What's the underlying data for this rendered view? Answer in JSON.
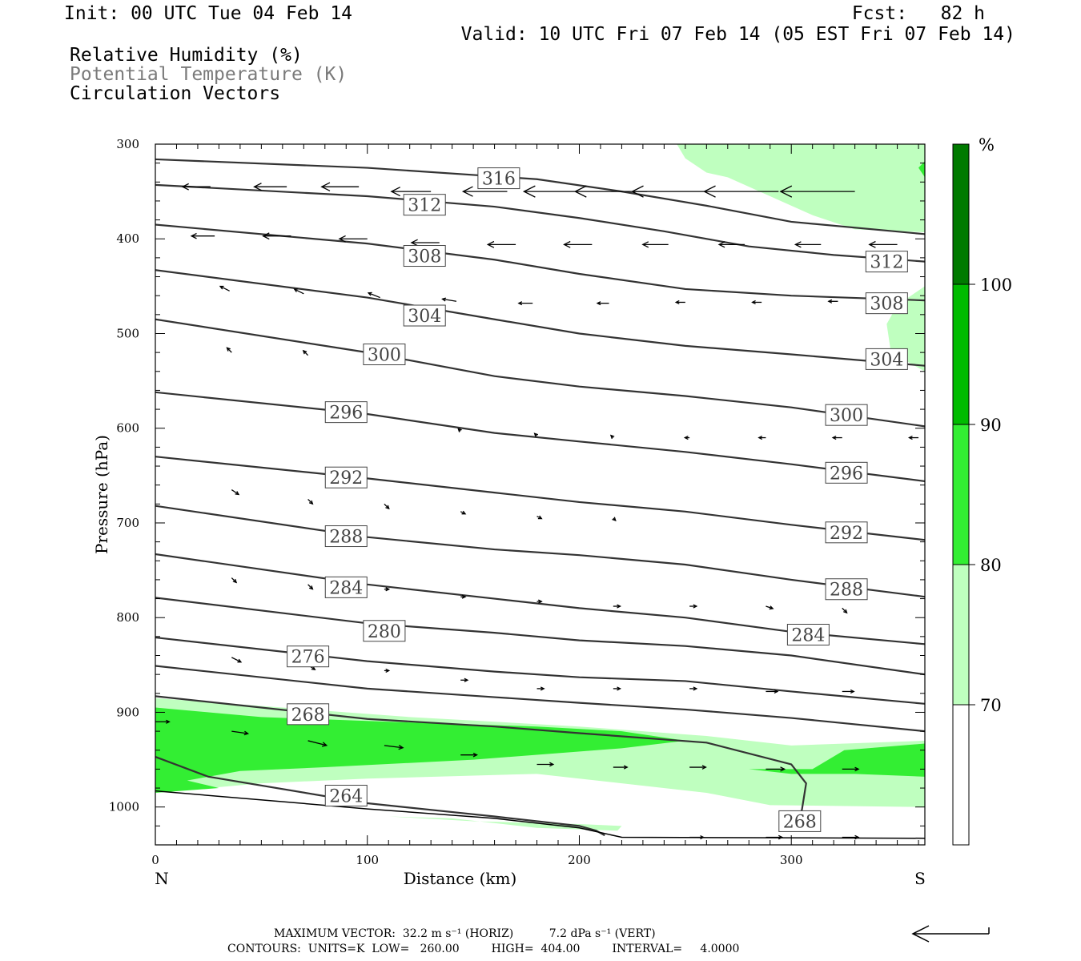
{
  "header": {
    "init": "Init: 00 UTC Tue 04 Feb 14",
    "fcst": "Fcst:   82 h",
    "valid": "Valid: 10 UTC Fri 07 Feb 14 (05 EST Fri 07 Feb 14)",
    "field1": "Relative Humidity (%)",
    "field2": "Potential Temperature (K)",
    "field3": "Circulation Vectors"
  },
  "footer": {
    "line1": "MAXIMUM VECTOR:  32.2 m s⁻¹ (HORIZ)          7.2 dPa s⁻¹ (VERT)",
    "line2": "CONTOURS:  UNITS=K  LOW=   260.00         HIGH=  404.00         INTERVAL=     4.0000"
  },
  "colors": {
    "rh70": "#bfffbf",
    "rh80": "#33ee33",
    "rh90": "#00bb00",
    "rh100": "#007a00",
    "contour": "#333333"
  },
  "chart_data": {
    "type": "cross-section",
    "xlabel": "Distance (km)",
    "ylabel": "Pressure (hPa)",
    "xlim": [
      0,
      363
    ],
    "ylim": [
      300,
      1040
    ],
    "x_ticks": [
      0,
      100,
      200,
      300
    ],
    "y_ticks": [
      300,
      400,
      500,
      600,
      700,
      800,
      900,
      1000
    ],
    "x_end_labels": {
      "left": "N",
      "right": "S"
    },
    "colorbar": {
      "unit": "%",
      "levels": [
        70,
        80,
        90,
        100
      ],
      "tick_labels": [
        "70",
        "80",
        "90",
        "100"
      ]
    },
    "theta_contours": [
      {
        "value": "316",
        "points": [
          [
            0,
            316
          ],
          [
            100,
            325
          ],
          [
            180,
            337
          ],
          [
            220,
            350
          ],
          [
            260,
            365
          ],
          [
            300,
            382
          ],
          [
            363,
            395
          ]
        ]
      },
      {
        "value": "312",
        "points": [
          [
            0,
            343
          ],
          [
            100,
            355
          ],
          [
            160,
            366
          ],
          [
            200,
            378
          ],
          [
            240,
            392
          ],
          [
            280,
            408
          ],
          [
            320,
            417
          ],
          [
            363,
            424
          ]
        ]
      },
      {
        "value": "308",
        "points": [
          [
            0,
            385
          ],
          [
            100,
            405
          ],
          [
            160,
            422
          ],
          [
            200,
            437
          ],
          [
            250,
            453
          ],
          [
            300,
            460
          ],
          [
            363,
            465
          ]
        ]
      },
      {
        "value": "304",
        "points": [
          [
            0,
            433
          ],
          [
            100,
            462
          ],
          [
            160,
            485
          ],
          [
            200,
            500
          ],
          [
            250,
            513
          ],
          [
            300,
            522
          ],
          [
            363,
            534
          ]
        ]
      },
      {
        "value": "300",
        "points": [
          [
            0,
            485
          ],
          [
            100,
            520
          ],
          [
            160,
            545
          ],
          [
            200,
            556
          ],
          [
            250,
            566
          ],
          [
            300,
            578
          ],
          [
            363,
            598
          ]
        ]
      },
      {
        "value": "296",
        "points": [
          [
            0,
            562
          ],
          [
            100,
            585
          ],
          [
            160,
            605
          ],
          [
            200,
            614
          ],
          [
            250,
            625
          ],
          [
            300,
            638
          ],
          [
            363,
            656
          ]
        ]
      },
      {
        "value": "292",
        "points": [
          [
            0,
            630
          ],
          [
            100,
            653
          ],
          [
            160,
            668
          ],
          [
            200,
            678
          ],
          [
            250,
            688
          ],
          [
            300,
            702
          ],
          [
            363,
            718
          ]
        ]
      },
      {
        "value": "288",
        "points": [
          [
            0,
            682
          ],
          [
            100,
            715
          ],
          [
            160,
            728
          ],
          [
            200,
            734
          ],
          [
            250,
            744
          ],
          [
            300,
            760
          ],
          [
            363,
            778
          ]
        ]
      },
      {
        "value": "284",
        "points": [
          [
            0,
            733
          ],
          [
            100,
            765
          ],
          [
            160,
            780
          ],
          [
            200,
            790
          ],
          [
            250,
            800
          ],
          [
            300,
            815
          ],
          [
            363,
            828
          ]
        ]
      },
      {
        "value": "280",
        "points": [
          [
            0,
            779
          ],
          [
            100,
            806
          ],
          [
            160,
            816
          ],
          [
            200,
            824
          ],
          [
            250,
            830
          ],
          [
            300,
            840
          ],
          [
            363,
            860
          ]
        ]
      },
      {
        "value": "276",
        "points": [
          [
            0,
            821
          ],
          [
            100,
            846
          ],
          [
            160,
            857
          ],
          [
            200,
            863
          ],
          [
            250,
            867
          ],
          [
            300,
            878
          ],
          [
            363,
            891
          ]
        ]
      },
      {
        "value": "272",
        "points": [
          [
            0,
            851
          ],
          [
            100,
            875
          ],
          [
            160,
            884
          ],
          [
            200,
            890
          ],
          [
            250,
            897
          ],
          [
            300,
            906
          ],
          [
            363,
            920
          ]
        ]
      },
      {
        "value": "268",
        "points": [
          [
            0,
            883
          ],
          [
            100,
            907
          ],
          [
            160,
            915
          ],
          [
            200,
            922
          ],
          [
            260,
            932
          ],
          [
            300,
            955
          ],
          [
            307,
            975
          ],
          [
            305,
            1003
          ],
          [
            300,
            1025
          ]
        ]
      },
      {
        "value": "264",
        "points": [
          [
            0,
            947
          ],
          [
            25,
            968
          ],
          [
            100,
            996
          ],
          [
            160,
            1010
          ],
          [
            200,
            1020
          ],
          [
            208,
            1025
          ],
          [
            212,
            1030
          ]
        ]
      }
    ],
    "contour_labels": [
      {
        "text": "316",
        "x": 162,
        "y": 336
      },
      {
        "text": "312",
        "x": 127,
        "y": 364
      },
      {
        "text": "312",
        "x": 345,
        "y": 424
      },
      {
        "text": "308",
        "x": 127,
        "y": 418
      },
      {
        "text": "308",
        "x": 345,
        "y": 468
      },
      {
        "text": "304",
        "x": 127,
        "y": 481
      },
      {
        "text": "304",
        "x": 345,
        "y": 527
      },
      {
        "text": "300",
        "x": 108,
        "y": 522
      },
      {
        "text": "300",
        "x": 326,
        "y": 586
      },
      {
        "text": "296",
        "x": 90,
        "y": 583
      },
      {
        "text": "296",
        "x": 326,
        "y": 647
      },
      {
        "text": "292",
        "x": 90,
        "y": 652
      },
      {
        "text": "292",
        "x": 326,
        "y": 710
      },
      {
        "text": "288",
        "x": 90,
        "y": 714
      },
      {
        "text": "288",
        "x": 326,
        "y": 770
      },
      {
        "text": "284",
        "x": 90,
        "y": 768
      },
      {
        "text": "284",
        "x": 308,
        "y": 818
      },
      {
        "text": "280",
        "x": 108,
        "y": 814
      },
      {
        "text": "276",
        "x": 72,
        "y": 841
      },
      {
        "text": "268",
        "x": 72,
        "y": 902
      },
      {
        "text": "264",
        "x": 90,
        "y": 988
      },
      {
        "text": "268",
        "x": 304,
        "y": 1015
      }
    ],
    "rh_70_polygons": [
      [
        [
          0,
          885
        ],
        [
          60,
          895
        ],
        [
          120,
          905
        ],
        [
          200,
          915
        ],
        [
          260,
          925
        ],
        [
          300,
          935
        ],
        [
          363,
          930
        ],
        [
          363,
          1000
        ],
        [
          290,
          998
        ],
        [
          260,
          985
        ],
        [
          220,
          975
        ],
        [
          180,
          965
        ],
        [
          100,
          970
        ],
        [
          50,
          975
        ],
        [
          0,
          985
        ]
      ],
      [
        [
          220,
          1020
        ],
        [
          218,
          1025
        ],
        [
          180,
          1022
        ],
        [
          140,
          1012
        ],
        [
          110,
          1010
        ],
        [
          150,
          1015
        ],
        [
          200,
          1018
        ]
      ],
      [
        [
          246,
          300
        ],
        [
          270,
          300
        ],
        [
          300,
          300
        ],
        [
          363,
          300
        ],
        [
          363,
          393
        ],
        [
          330,
          390
        ],
        [
          310,
          375
        ],
        [
          290,
          355
        ],
        [
          270,
          335
        ],
        [
          260,
          330
        ],
        [
          250,
          315
        ]
      ],
      [
        [
          363,
          450
        ],
        [
          350,
          470
        ],
        [
          345,
          490
        ],
        [
          347,
          520
        ],
        [
          363,
          540
        ]
      ]
    ],
    "rh_80_polygons": [
      [
        [
          0,
          895
        ],
        [
          50,
          905
        ],
        [
          110,
          910
        ],
        [
          180,
          915
        ],
        [
          220,
          920
        ],
        [
          250,
          930
        ],
        [
          220,
          938
        ],
        [
          150,
          950
        ],
        [
          80,
          958
        ],
        [
          40,
          962
        ],
        [
          15,
          972
        ],
        [
          30,
          980
        ],
        [
          0,
          985
        ]
      ],
      [
        [
          280,
          960
        ],
        [
          310,
          960
        ],
        [
          325,
          940
        ],
        [
          363,
          933
        ],
        [
          363,
          968
        ],
        [
          330,
          965
        ],
        [
          300,
          965
        ]
      ],
      [
        [
          360,
          325
        ],
        [
          363,
          318
        ],
        [
          363,
          335
        ]
      ]
    ],
    "vectors": [
      {
        "p": 345,
        "x": 26,
        "u": -12
      },
      {
        "p": 345,
        "x": 62,
        "u": -14
      },
      {
        "p": 345,
        "x": 96,
        "u": -16
      },
      {
        "p": 350,
        "x": 130,
        "u": -17
      },
      {
        "p": 350,
        "x": 166,
        "u": -19
      },
      {
        "p": 350,
        "x": 198,
        "u": -22
      },
      {
        "p": 350,
        "x": 232,
        "u": -31
      },
      {
        "p": 350,
        "x": 260,
        "u": -32
      },
      {
        "p": 350,
        "x": 294,
        "u": -32
      },
      {
        "p": 350,
        "x": 330,
        "u": -32
      },
      {
        "p": 397,
        "x": 28,
        "u": -10
      },
      {
        "p": 397,
        "x": 64,
        "u": -12
      },
      {
        "p": 400,
        "x": 100,
        "u": -12
      },
      {
        "p": 404,
        "x": 134,
        "u": -12
      },
      {
        "p": 406,
        "x": 170,
        "u": -12
      },
      {
        "p": 406,
        "x": 206,
        "u": -12
      },
      {
        "p": 406,
        "x": 242,
        "u": -11
      },
      {
        "p": 406,
        "x": 278,
        "u": -11
      },
      {
        "p": 406,
        "x": 314,
        "u": -11
      },
      {
        "p": 406,
        "x": 350,
        "u": -12
      },
      {
        "p": 455,
        "x": 35,
        "u": -4,
        "w": 2
      },
      {
        "p": 458,
        "x": 70,
        "u": -4,
        "w": 2
      },
      {
        "p": 462,
        "x": 106,
        "u": -5,
        "w": 2
      },
      {
        "p": 466,
        "x": 142,
        "u": -6,
        "w": 1
      },
      {
        "p": 468,
        "x": 178,
        "u": -6
      },
      {
        "p": 468,
        "x": 214,
        "u": -5
      },
      {
        "p": 467,
        "x": 250,
        "u": -4
      },
      {
        "p": 467,
        "x": 286,
        "u": -4
      },
      {
        "p": 466,
        "x": 322,
        "u": -4
      },
      {
        "p": 520,
        "x": 36,
        "u": -2,
        "w": 2
      },
      {
        "p": 523,
        "x": 72,
        "u": -2,
        "w": 2
      },
      {
        "p": 603,
        "x": 144,
        "u": -1,
        "w": 1
      },
      {
        "p": 608,
        "x": 180,
        "u": -1,
        "w": 1
      },
      {
        "p": 610,
        "x": 216,
        "u": -1,
        "w": 1
      },
      {
        "p": 610,
        "x": 252,
        "u": -2
      },
      {
        "p": 610,
        "x": 288,
        "u": -3
      },
      {
        "p": 610,
        "x": 324,
        "u": -4
      },
      {
        "p": 610,
        "x": 360,
        "u": -4
      },
      {
        "p": 665,
        "x": 36,
        "u": 3,
        "w": -2
      },
      {
        "p": 675,
        "x": 72,
        "u": 2,
        "w": -2
      },
      {
        "p": 680,
        "x": 108,
        "u": 2,
        "w": -2
      },
      {
        "p": 688,
        "x": 144,
        "u": 2,
        "w": -1
      },
      {
        "p": 693,
        "x": 180,
        "u": 2,
        "w": -1
      },
      {
        "p": 695,
        "x": 216,
        "u": 1,
        "w": -1
      },
      {
        "p": 758,
        "x": 36,
        "u": 2,
        "w": -2
      },
      {
        "p": 765,
        "x": 72,
        "u": 2,
        "w": -2
      },
      {
        "p": 770,
        "x": 108,
        "u": 2
      },
      {
        "p": 778,
        "x": 144,
        "u": 2
      },
      {
        "p": 783,
        "x": 180,
        "u": 2
      },
      {
        "p": 788,
        "x": 216,
        "u": 3
      },
      {
        "p": 788,
        "x": 252,
        "u": 3
      },
      {
        "p": 788,
        "x": 288,
        "u": 3,
        "w": -1
      },
      {
        "p": 790,
        "x": 324,
        "u": 2,
        "w": -2
      },
      {
        "p": 842,
        "x": 36,
        "u": 4,
        "w": -2
      },
      {
        "p": 850,
        "x": 72,
        "u": 3,
        "w": -2
      },
      {
        "p": 856,
        "x": 108,
        "u": 2
      },
      {
        "p": 866,
        "x": 144,
        "u": 3
      },
      {
        "p": 875,
        "x": 180,
        "u": 3
      },
      {
        "p": 875,
        "x": 216,
        "u": 3
      },
      {
        "p": 875,
        "x": 252,
        "u": 3
      },
      {
        "p": 878,
        "x": 288,
        "u": 5
      },
      {
        "p": 878,
        "x": 324,
        "u": 5
      },
      {
        "p": 910,
        "x": 0,
        "u": 6
      },
      {
        "p": 920,
        "x": 36,
        "u": 7,
        "w": -1
      },
      {
        "p": 930,
        "x": 72,
        "u": 8,
        "w": -2
      },
      {
        "p": 935,
        "x": 108,
        "u": 8,
        "w": -1
      },
      {
        "p": 945,
        "x": 144,
        "u": 7
      },
      {
        "p": 955,
        "x": 180,
        "u": 7
      },
      {
        "p": 958,
        "x": 216,
        "u": 6
      },
      {
        "p": 958,
        "x": 252,
        "u": 7
      },
      {
        "p": 960,
        "x": 288,
        "u": 8
      },
      {
        "p": 960,
        "x": 324,
        "u": 7
      },
      {
        "p": 1032,
        "x": 252,
        "u": 6
      },
      {
        "p": 1032,
        "x": 288,
        "u": 7
      },
      {
        "p": 1032,
        "x": 324,
        "u": 7
      }
    ]
  }
}
